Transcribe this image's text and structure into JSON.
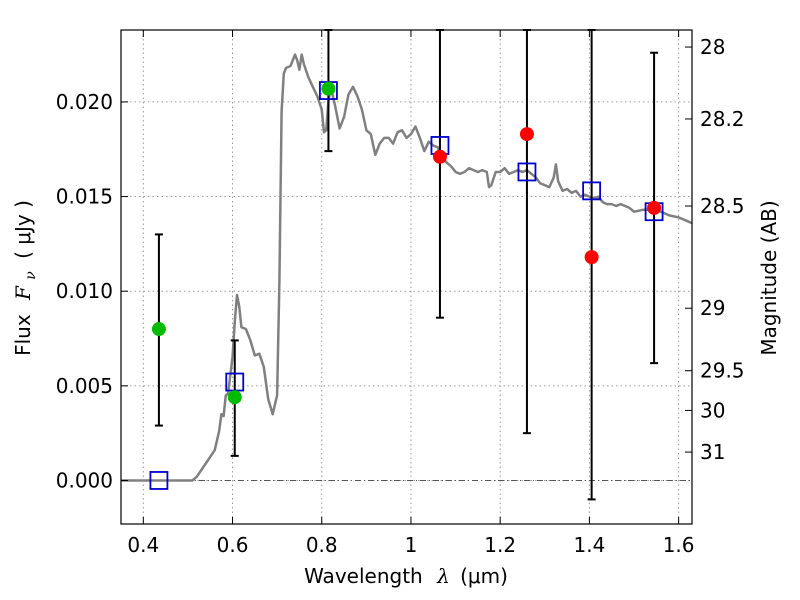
{
  "chart_data": {
    "type": "scatter",
    "title": "",
    "xlabel_text": "Wavelength",
    "xlabel_symbol": "λ",
    "xlabel_unit": "(μm)",
    "ylabel_text": "Flux",
    "ylabel_symbol": "F",
    "ylabel_sub": "ν",
    "ylabel_unit": "( μJy )",
    "y2label": "Magnitude (AB)",
    "xlim": [
      0.35,
      1.63
    ],
    "ylim": [
      -0.0023,
      0.0238
    ],
    "grid": true,
    "legend": "none",
    "x_ticks": [
      {
        "value": 0.4,
        "label": "0.4"
      },
      {
        "value": 0.6,
        "label": "0.6"
      },
      {
        "value": 0.8,
        "label": "0.8"
      },
      {
        "value": 1.0,
        "label": "1"
      },
      {
        "value": 1.2,
        "label": "1.2"
      },
      {
        "value": 1.4,
        "label": "1.4"
      },
      {
        "value": 1.6,
        "label": "1.6"
      }
    ],
    "y_ticks": [
      {
        "value": 0.0,
        "label": "0.000"
      },
      {
        "value": 0.005,
        "label": "0.005"
      },
      {
        "value": 0.01,
        "label": "0.010"
      },
      {
        "value": 0.015,
        "label": "0.015"
      },
      {
        "value": 0.02,
        "label": "0.020"
      }
    ],
    "y2_ticks": [
      {
        "label": "28",
        "flux": 0.0229
      },
      {
        "label": "28.2",
        "flux": 0.0191
      },
      {
        "label": "28.5",
        "flux": 0.0145
      },
      {
        "label": "29",
        "flux": 0.0091
      },
      {
        "label": "29.5",
        "flux": 0.0058
      },
      {
        "label": "30",
        "flux": 0.0037
      },
      {
        "label": "31",
        "flux": 0.0015
      }
    ],
    "colors": {
      "model": "#808080",
      "green": "#00bb00",
      "red": "#ff0000",
      "square": "#0000cc",
      "errorbar": "#000000",
      "grid": "#9a9a9a",
      "zero_line": "#555555"
    },
    "model_spectrum": [
      [
        0.35,
        0.0
      ],
      [
        0.51,
        0.0
      ],
      [
        0.52,
        0.0002
      ],
      [
        0.54,
        0.0009
      ],
      [
        0.56,
        0.0016
      ],
      [
        0.57,
        0.0026
      ],
      [
        0.575,
        0.0035
      ],
      [
        0.58,
        0.0034
      ],
      [
        0.585,
        0.0045
      ],
      [
        0.59,
        0.0046
      ],
      [
        0.6,
        0.0065
      ],
      [
        0.605,
        0.0084
      ],
      [
        0.61,
        0.0098
      ],
      [
        0.615,
        0.0092
      ],
      [
        0.62,
        0.0081
      ],
      [
        0.63,
        0.008
      ],
      [
        0.64,
        0.0074
      ],
      [
        0.65,
        0.0066
      ],
      [
        0.66,
        0.0067
      ],
      [
        0.67,
        0.006
      ],
      [
        0.68,
        0.0043
      ],
      [
        0.69,
        0.0035
      ],
      [
        0.7,
        0.0045
      ],
      [
        0.705,
        0.0105
      ],
      [
        0.71,
        0.0195
      ],
      [
        0.715,
        0.0215
      ],
      [
        0.72,
        0.0218
      ],
      [
        0.73,
        0.0219
      ],
      [
        0.74,
        0.0225
      ],
      [
        0.745,
        0.0222
      ],
      [
        0.75,
        0.0217
      ],
      [
        0.755,
        0.0225
      ],
      [
        0.76,
        0.022
      ],
      [
        0.77,
        0.0213
      ],
      [
        0.78,
        0.0208
      ],
      [
        0.79,
        0.0203
      ],
      [
        0.8,
        0.0196
      ],
      [
        0.805,
        0.0184
      ],
      [
        0.81,
        0.0185
      ],
      [
        0.815,
        0.02
      ],
      [
        0.82,
        0.0208
      ],
      [
        0.83,
        0.0198
      ],
      [
        0.84,
        0.0186
      ],
      [
        0.85,
        0.0192
      ],
      [
        0.86,
        0.0204
      ],
      [
        0.87,
        0.0208
      ],
      [
        0.88,
        0.0203
      ],
      [
        0.89,
        0.0196
      ],
      [
        0.9,
        0.0185
      ],
      [
        0.91,
        0.0183
      ],
      [
        0.92,
        0.0172
      ],
      [
        0.93,
        0.0178
      ],
      [
        0.94,
        0.0181
      ],
      [
        0.95,
        0.0181
      ],
      [
        0.96,
        0.0178
      ],
      [
        0.97,
        0.0184
      ],
      [
        0.98,
        0.0185
      ],
      [
        0.99,
        0.0181
      ],
      [
        1.0,
        0.0183
      ],
      [
        1.01,
        0.0187
      ],
      [
        1.02,
        0.0181
      ],
      [
        1.03,
        0.0174
      ],
      [
        1.04,
        0.0179
      ],
      [
        1.05,
        0.0177
      ],
      [
        1.06,
        0.0176
      ],
      [
        1.07,
        0.017
      ],
      [
        1.08,
        0.0168
      ],
      [
        1.09,
        0.0166
      ],
      [
        1.1,
        0.0163
      ],
      [
        1.11,
        0.0162
      ],
      [
        1.12,
        0.0163
      ],
      [
        1.13,
        0.0165
      ],
      [
        1.14,
        0.0164
      ],
      [
        1.15,
        0.0163
      ],
      [
        1.16,
        0.0164
      ],
      [
        1.17,
        0.0163
      ],
      [
        1.175,
        0.0155
      ],
      [
        1.18,
        0.0156
      ],
      [
        1.19,
        0.0163
      ],
      [
        1.2,
        0.0163
      ],
      [
        1.21,
        0.0165
      ],
      [
        1.22,
        0.0162
      ],
      [
        1.23,
        0.0163
      ],
      [
        1.24,
        0.0164
      ],
      [
        1.25,
        0.0163
      ],
      [
        1.26,
        0.0164
      ],
      [
        1.27,
        0.0162
      ],
      [
        1.28,
        0.016
      ],
      [
        1.29,
        0.0157
      ],
      [
        1.3,
        0.0156
      ],
      [
        1.31,
        0.0155
      ],
      [
        1.32,
        0.016
      ],
      [
        1.325,
        0.0167
      ],
      [
        1.33,
        0.0158
      ],
      [
        1.34,
        0.0153
      ],
      [
        1.35,
        0.0154
      ],
      [
        1.36,
        0.0152
      ],
      [
        1.37,
        0.0153
      ],
      [
        1.38,
        0.015
      ],
      [
        1.39,
        0.0151
      ],
      [
        1.4,
        0.015
      ],
      [
        1.41,
        0.0149
      ],
      [
        1.42,
        0.015
      ],
      [
        1.43,
        0.0147
      ],
      [
        1.44,
        0.0146
      ],
      [
        1.45,
        0.0146
      ],
      [
        1.46,
        0.0145
      ],
      [
        1.47,
        0.0146
      ],
      [
        1.48,
        0.0145
      ],
      [
        1.49,
        0.0144
      ],
      [
        1.5,
        0.0142
      ],
      [
        1.52,
        0.0143
      ],
      [
        1.54,
        0.0143
      ],
      [
        1.56,
        0.0142
      ],
      [
        1.58,
        0.014
      ],
      [
        1.6,
        0.0139
      ],
      [
        1.62,
        0.0137
      ],
      [
        1.63,
        0.0136
      ]
    ],
    "squares": [
      {
        "x": 0.435,
        "y": 0.0
      },
      {
        "x": 0.605,
        "y": 0.0052
      },
      {
        "x": 0.815,
        "y": 0.0206
      },
      {
        "x": 1.065,
        "y": 0.0177
      },
      {
        "x": 1.26,
        "y": 0.0163
      },
      {
        "x": 1.405,
        "y": 0.0153
      },
      {
        "x": 1.545,
        "y": 0.0142
      }
    ],
    "green_points": [
      {
        "x": 0.435,
        "y": 0.008,
        "err_low": 0.0029,
        "err_high": 0.013
      },
      {
        "x": 0.605,
        "y": 0.0044,
        "err_low": 0.0013,
        "err_high": 0.0074
      },
      {
        "x": 0.815,
        "y": 0.0207,
        "err_low": 0.0174,
        "err_high": 0.0238
      }
    ],
    "red_points": [
      {
        "x": 1.065,
        "y": 0.0171,
        "err_low": 0.0086,
        "err_high": 0.0238
      },
      {
        "x": 1.26,
        "y": 0.0183,
        "err_low": 0.0025,
        "err_high": 0.0238
      },
      {
        "x": 1.405,
        "y": 0.0118,
        "err_low": -0.001,
        "err_high": 0.0238
      },
      {
        "x": 1.545,
        "y": 0.0144,
        "err_low": 0.0062,
        "err_high": 0.0226
      }
    ]
  }
}
